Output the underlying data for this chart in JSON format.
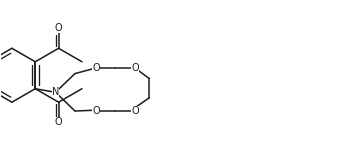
{
  "bg_color": "#ffffff",
  "line_color": "#1c1c1c",
  "lw": 1.1,
  "lw_inner": 0.95,
  "fs": 7.0,
  "figsize": [
    3.42,
    1.43
  ],
  "dpi": 100,
  "xlim": [
    -0.3,
    8.8
  ],
  "ylim": [
    -1.6,
    1.8
  ]
}
